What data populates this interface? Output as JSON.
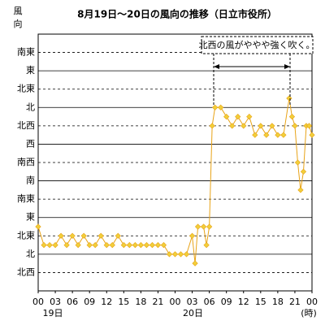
{
  "chart_data": {
    "type": "line",
    "title": "8月19日～20日の風向の推移（日立市役所）",
    "y_label": "風向",
    "annotation": "北西の風がややや強く吹く。",
    "date_labels": [
      "19日",
      "20日"
    ],
    "x_unit": "(時)",
    "xlim": [
      0,
      48
    ],
    "xticks": [
      {
        "value": 0,
        "label": "00"
      },
      {
        "value": 3,
        "label": "03"
      },
      {
        "value": 6,
        "label": "06"
      },
      {
        "value": 9,
        "label": "09"
      },
      {
        "value": 12,
        "label": "12"
      },
      {
        "value": 15,
        "label": "15"
      },
      {
        "value": 18,
        "label": "18"
      },
      {
        "value": 21,
        "label": "21"
      },
      {
        "value": 24,
        "label": "00"
      },
      {
        "value": 27,
        "label": "03"
      },
      {
        "value": 30,
        "label": "06"
      },
      {
        "value": 33,
        "label": "09"
      },
      {
        "value": 36,
        "label": "12"
      },
      {
        "value": 39,
        "label": "15"
      },
      {
        "value": 42,
        "label": "18"
      },
      {
        "value": 45,
        "label": "21"
      },
      {
        "value": 48,
        "label": "00"
      }
    ],
    "ylim": [
      -1,
      13
    ],
    "yticks": [
      {
        "value": 0,
        "label": "北西"
      },
      {
        "value": 1,
        "label": "北"
      },
      {
        "value": 2,
        "label": "北東"
      },
      {
        "value": 3,
        "label": "東"
      },
      {
        "value": 4,
        "label": "南東"
      },
      {
        "value": 5,
        "label": "南"
      },
      {
        "value": 6,
        "label": "南西"
      },
      {
        "value": 7,
        "label": "西"
      },
      {
        "value": 8,
        "label": "北西"
      },
      {
        "value": 9,
        "label": "北"
      },
      {
        "value": 10,
        "label": "北東"
      },
      {
        "value": 11,
        "label": "東"
      },
      {
        "value": 12,
        "label": "南東"
      }
    ],
    "grid": true,
    "x": [
      0,
      1,
      2,
      3,
      4,
      5,
      6,
      7,
      8,
      9,
      10,
      11,
      12,
      13,
      14,
      15,
      16,
      17,
      18,
      19,
      20,
      21,
      22,
      23,
      24,
      25,
      26,
      27,
      27.5,
      28,
      29,
      29.5,
      30,
      30.5,
      31,
      32,
      33,
      34,
      35,
      36,
      37,
      38,
      39,
      40,
      41,
      42,
      43,
      44,
      44.5,
      45,
      45.5,
      46,
      46.5,
      47,
      47.5,
      48
    ],
    "series": [
      {
        "color": "#e8a317",
        "marker_color": "#f2cf3a",
        "values": [
          2.5,
          1.5,
          1.5,
          1.5,
          2,
          1.5,
          2,
          1.5,
          2,
          1.5,
          1.5,
          2,
          1.5,
          1.5,
          2,
          1.5,
          1.5,
          1.5,
          1.5,
          1.5,
          1.5,
          1.5,
          1.5,
          1,
          1,
          1,
          1,
          2,
          0.5,
          2.5,
          2.5,
          1.5,
          2.5,
          8,
          9,
          9,
          8.5,
          8,
          8.5,
          8,
          8.5,
          7.5,
          8,
          7.5,
          8,
          7.5,
          7.5,
          9.5,
          8.5,
          8,
          6,
          4.5,
          5.5,
          8,
          8,
          7.5
        ]
      }
    ]
  }
}
